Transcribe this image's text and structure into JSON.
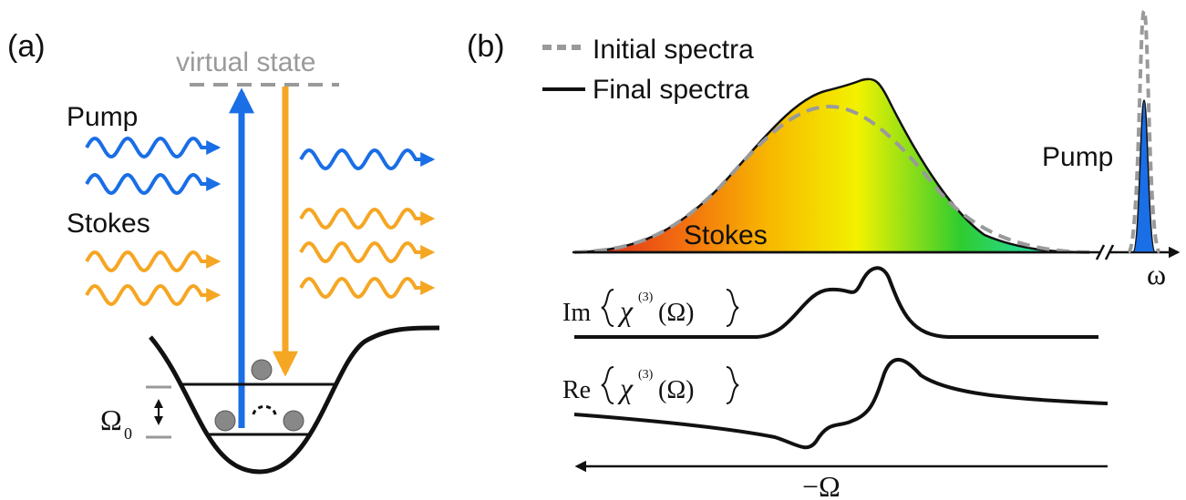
{
  "panel_a": {
    "label": "(a)",
    "virtual_state": "virtual state",
    "pump": "Pump",
    "stokes": "Stokes",
    "omega0": {
      "symbol": "Ω",
      "subscript": "0"
    }
  },
  "panel_b": {
    "label": "(b)",
    "legend": [
      "Initial spectra",
      "Final spectra"
    ],
    "stokes": "Stokes",
    "pump": "Pump",
    "axis_label": "ω",
    "im_label": {
      "prefix": "Im",
      "symbol": "χ",
      "superscript": "(3)",
      "argument": "(Ω)"
    },
    "re_label": {
      "prefix": "Re",
      "symbol": "χ",
      "superscript": "(3)",
      "argument": "(Ω)"
    },
    "bottom_axis_label": "−Ω"
  }
}
